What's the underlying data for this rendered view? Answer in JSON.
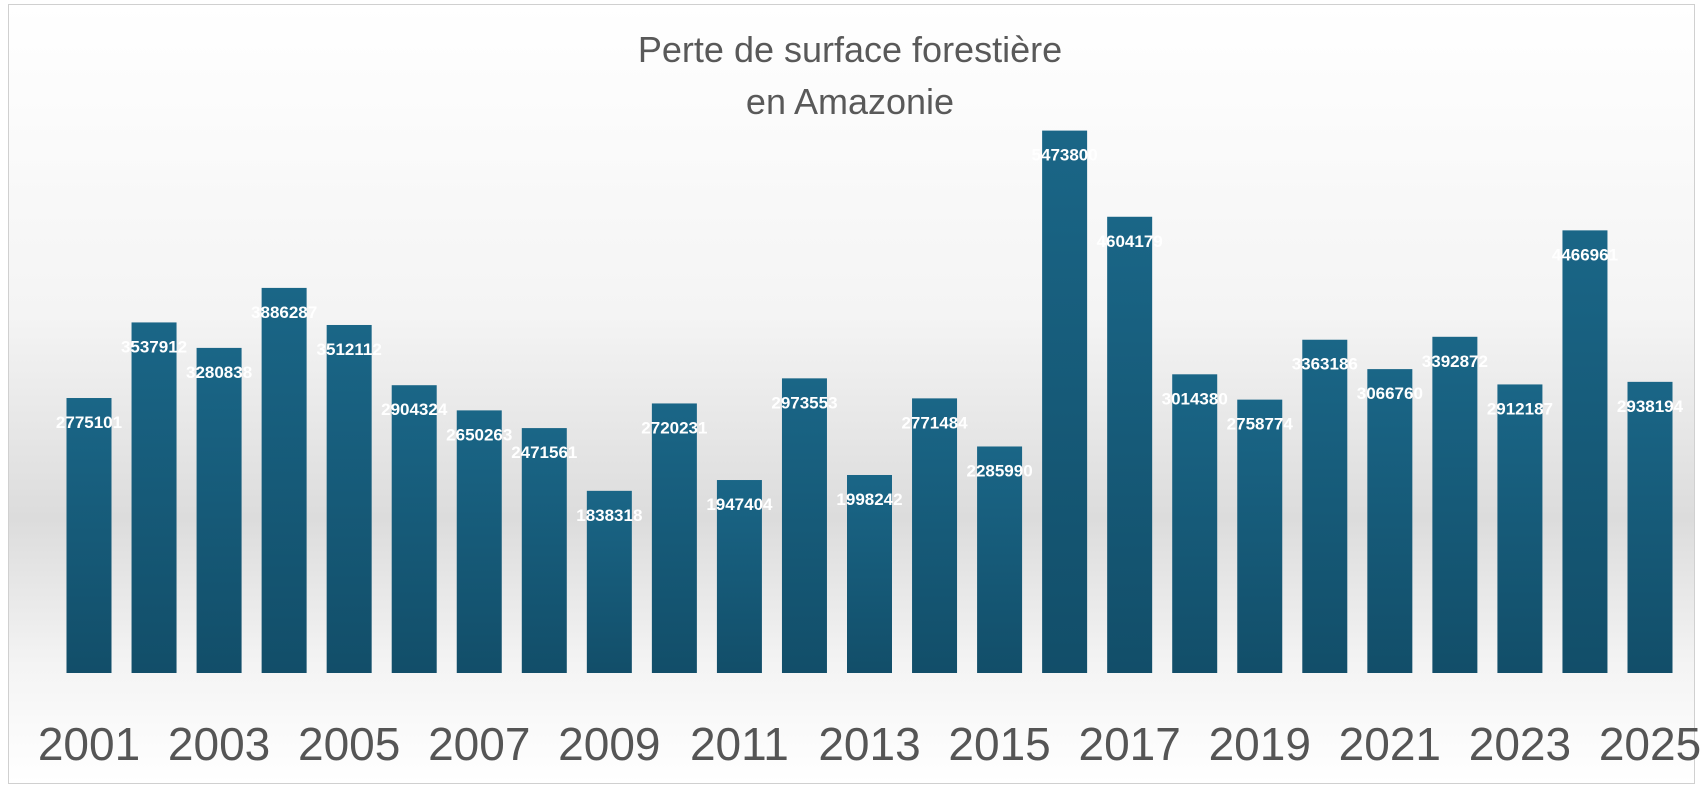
{
  "chart_data": {
    "type": "bar",
    "title": "Perte de surface forestière en Amazonie",
    "categories": [
      "2001",
      null,
      "2003",
      null,
      "2005",
      null,
      "2007",
      null,
      "2009",
      null,
      "2011",
      null,
      "2013",
      null,
      "2015",
      null,
      "2017",
      null,
      "2019",
      null,
      "2021",
      null,
      "2023",
      null,
      "2025"
    ],
    "values": [
      2775101,
      3537912,
      3280838,
      3886287,
      3512112,
      2904324,
      2650263,
      2471561,
      1838318,
      2720231,
      1947404,
      2973553,
      1998242,
      2771484,
      2285990,
      5473800,
      4604179,
      3014380,
      2758774,
      3363186,
      3066760,
      3392872,
      2912187,
      4466961,
      2938194
    ],
    "color": "#175f7e",
    "ylim": [
      0,
      5500000
    ]
  }
}
